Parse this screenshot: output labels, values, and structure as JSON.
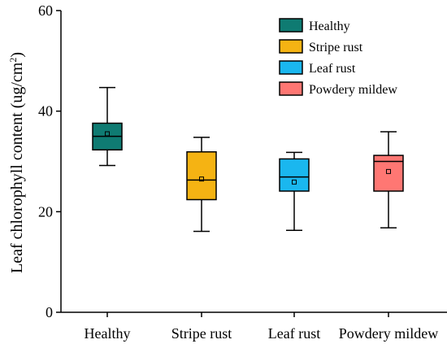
{
  "chart_data": {
    "type": "box",
    "title": "",
    "xlabel": "",
    "ylabel": {
      "main": "Leaf chlorophyll content (ug/cm",
      "superscript": "2",
      "suffix": ")"
    },
    "ylim": [
      0,
      60
    ],
    "yticks": [
      "0",
      "20",
      "40",
      "60"
    ],
    "categories": [
      "Healthy",
      "Stripe rust",
      "Leaf rust",
      "Powdery mildew"
    ],
    "series": [
      {
        "name": "Healthy",
        "color": "#0f7b72",
        "min": 29.2,
        "q1": 32.3,
        "median": 35.0,
        "q3": 37.6,
        "max": 44.7,
        "mean": 35.5
      },
      {
        "name": "Stripe rust",
        "color": "#f5b313",
        "min": 16.1,
        "q1": 22.4,
        "median": 26.3,
        "q3": 31.9,
        "max": 34.8,
        "mean": 26.5
      },
      {
        "name": "Leaf rust",
        "color": "#1ab7ef",
        "min": 16.3,
        "q1": 24.1,
        "median": 26.9,
        "q3": 30.5,
        "max": 31.8,
        "mean": 25.9
      },
      {
        "name": "Powdery mildew",
        "color": "#ff7773",
        "min": 16.8,
        "q1": 24.1,
        "median": 30.0,
        "q3": 31.2,
        "max": 35.9,
        "mean": 28.0
      }
    ],
    "legend": {
      "placement": "top-right",
      "entries": [
        "Healthy",
        "Stripe rust",
        "Leaf rust",
        "Powdery mildew"
      ]
    },
    "grid": false
  }
}
